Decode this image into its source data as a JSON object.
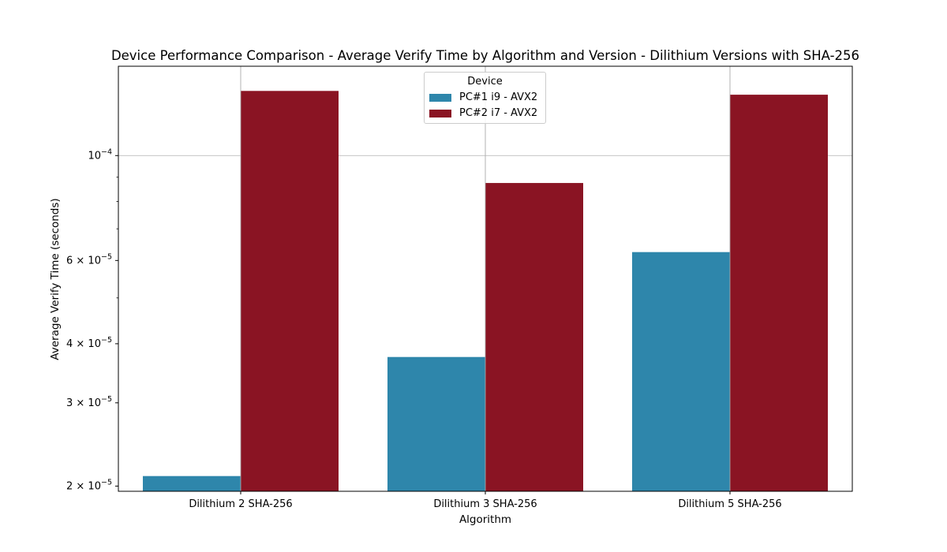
{
  "chart_data": {
    "type": "bar",
    "title": "Device Performance Comparison - Average Verify Time by Algorithm and Version - Dilithium Versions with SHA-256",
    "xlabel": "Algorithm",
    "ylabel": "Average Verify Time (seconds)",
    "categories": [
      "Dilithium 2 SHA-256",
      "Dilithium 3 SHA-256",
      "Dilithium 5 SHA-256"
    ],
    "series": [
      {
        "name": "PC#1 i9 - AVX2",
        "color": "#2e86ab",
        "values": [
          2.1e-05,
          3.75e-05,
          6.25e-05
        ]
      },
      {
        "name": "PC#2 i7 - AVX2",
        "color": "#8a1423",
        "values": [
          0.000137,
          8.75e-05,
          0.0001345
        ]
      }
    ],
    "y_scale": "log",
    "ylim": [
      1.95e-05,
      0.0001545
    ],
    "y_tick_labels": [
      {
        "value": 2e-05,
        "base": "2",
        "exp": "−5"
      },
      {
        "value": 3e-05,
        "base": "3",
        "exp": "−5"
      },
      {
        "value": 4e-05,
        "base": "4",
        "exp": "−5"
      },
      {
        "value": 6e-05,
        "base": "6",
        "exp": "−5"
      },
      {
        "value": 0.0001,
        "base": "",
        "exp": "−4"
      }
    ],
    "y_minor_ticks": [
      5e-05,
      7e-05,
      8e-05,
      9e-05
    ],
    "grid": true,
    "legend": {
      "title": "Device",
      "placement": "upper center"
    }
  }
}
